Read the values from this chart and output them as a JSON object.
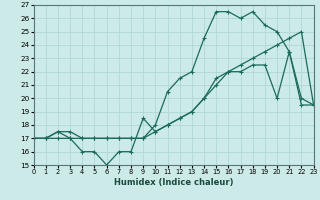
{
  "xlabel": "Humidex (Indice chaleur)",
  "xlim": [
    0,
    23
  ],
  "ylim": [
    15,
    27
  ],
  "yticks": [
    15,
    16,
    17,
    18,
    19,
    20,
    21,
    22,
    23,
    24,
    25,
    26,
    27
  ],
  "xticks": [
    0,
    1,
    2,
    3,
    4,
    5,
    6,
    7,
    8,
    9,
    10,
    11,
    12,
    13,
    14,
    15,
    16,
    17,
    18,
    19,
    20,
    21,
    22,
    23
  ],
  "bg_color": "#cceae8",
  "grid_color": "#b0d8d5",
  "line_color": "#1a6b5a",
  "line1_y": [
    17,
    17,
    17.5,
    17.5,
    17,
    17,
    17,
    17,
    17,
    17,
    18,
    20.5,
    21.5,
    22,
    24.5,
    26.5,
    26.5,
    26,
    26.5,
    25.5,
    25,
    23.5,
    20,
    19.5
  ],
  "line2_y": [
    17,
    17,
    17,
    17,
    17,
    17,
    17,
    17,
    17,
    17,
    17.5,
    18,
    18.5,
    19,
    20,
    21,
    22,
    22.5,
    23,
    23.5,
    24,
    24.5,
    25,
    19.5
  ],
  "line3_y": [
    17,
    17,
    17.5,
    17,
    16,
    16,
    15,
    16,
    16,
    18.5,
    17.5,
    18,
    18.5,
    19,
    20,
    21.5,
    22,
    22,
    22.5,
    22.5,
    20,
    23.5,
    19.5,
    19.5
  ]
}
